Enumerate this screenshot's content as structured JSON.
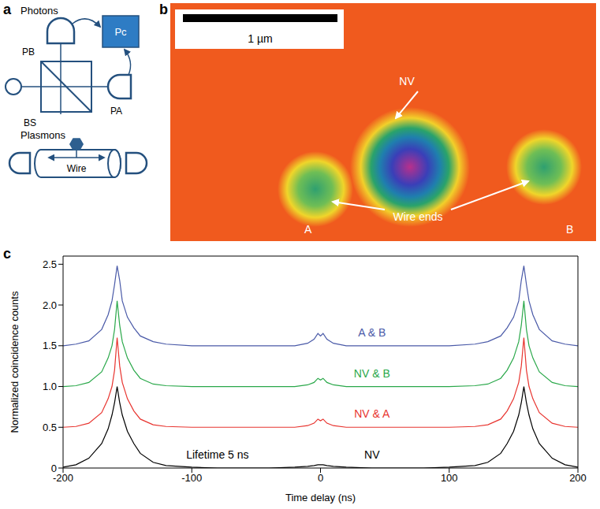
{
  "panels": {
    "a": {
      "letter": "a",
      "photons_label": "Photons",
      "detector_top": "PB",
      "detector_right": "PA",
      "correlator": "Pc",
      "splitter": "BS",
      "plasmons_label": "Plasmons",
      "wire_label": "Wire"
    },
    "b": {
      "letter": "b",
      "scale_bar": "1 µm",
      "nv_label": "NV",
      "wire_ends_label": "Wire ends",
      "end_a": "A",
      "end_b": "B"
    }
  },
  "chart_data": {
    "letter": "c",
    "type": "line",
    "xlabel": "Time delay (ns)",
    "ylabel": "Normalized coincidence counts",
    "xlim": [
      -200,
      200
    ],
    "xticks": [
      -200,
      -100,
      0,
      100,
      200
    ],
    "ylim": [
      0,
      2.6
    ],
    "yticks": [
      0,
      0.5,
      {
        "value": 1,
        "label": "1.0"
      },
      {
        "value": 1.5,
        "label": "1.5"
      },
      {
        "value": 2,
        "label": "2.0"
      },
      {
        "value": 2.5,
        "label": "2.5"
      }
    ],
    "annotations": [
      "Lifetime 5 ns"
    ],
    "x": [
      -200,
      -190,
      -180,
      -170,
      -165,
      -162,
      -160,
      -158,
      -156,
      -154,
      -150,
      -145,
      -140,
      -130,
      -120,
      -100,
      -80,
      -60,
      -40,
      -20,
      -10,
      -5,
      -2,
      0,
      2,
      5,
      10,
      20,
      40,
      60,
      80,
      100,
      120,
      130,
      140,
      145,
      150,
      154,
      156,
      158,
      160,
      162,
      165,
      170,
      180,
      190,
      200
    ],
    "series": [
      {
        "name": "NV",
        "color": "#000000",
        "values": [
          0.01,
          0.04,
          0.12,
          0.3,
          0.48,
          0.65,
          0.8,
          1.0,
          0.8,
          0.65,
          0.45,
          0.3,
          0.18,
          0.07,
          0.03,
          0.01,
          0,
          0,
          0,
          0.01,
          0.02,
          0.03,
          0.04,
          0.04,
          0.04,
          0.03,
          0.02,
          0.01,
          0,
          0,
          0,
          0.01,
          0.03,
          0.07,
          0.18,
          0.3,
          0.45,
          0.65,
          0.8,
          1.0,
          0.8,
          0.65,
          0.48,
          0.3,
          0.12,
          0.04,
          0.01
        ]
      },
      {
        "name": "NV & A",
        "color": "#e8342f",
        "values": [
          0.5,
          0.51,
          0.55,
          0.68,
          0.85,
          1.0,
          1.2,
          1.6,
          1.25,
          1.05,
          0.85,
          0.7,
          0.6,
          0.53,
          0.51,
          0.5,
          0.5,
          0.5,
          0.5,
          0.5,
          0.52,
          0.55,
          0.6,
          0.58,
          0.6,
          0.55,
          0.52,
          0.5,
          0.5,
          0.5,
          0.5,
          0.5,
          0.51,
          0.53,
          0.6,
          0.7,
          0.85,
          1.05,
          1.25,
          1.6,
          1.2,
          1.0,
          0.85,
          0.68,
          0.55,
          0.51,
          0.5
        ]
      },
      {
        "name": "NV & B",
        "color": "#2aa84a",
        "values": [
          1.0,
          1.01,
          1.05,
          1.18,
          1.35,
          1.5,
          1.7,
          2.05,
          1.75,
          1.55,
          1.35,
          1.2,
          1.1,
          1.03,
          1.01,
          1.0,
          1.0,
          1.0,
          1.0,
          1.0,
          1.02,
          1.05,
          1.1,
          1.08,
          1.1,
          1.05,
          1.02,
          1.0,
          1.0,
          1.0,
          1.0,
          1.0,
          1.01,
          1.03,
          1.1,
          1.2,
          1.35,
          1.55,
          1.75,
          2.05,
          1.7,
          1.5,
          1.35,
          1.18,
          1.05,
          1.01,
          1.0
        ]
      },
      {
        "name": "A & B",
        "color": "#4a5aa8",
        "values": [
          1.5,
          1.52,
          1.56,
          1.7,
          1.88,
          2.05,
          2.25,
          2.48,
          2.3,
          2.05,
          1.85,
          1.72,
          1.62,
          1.55,
          1.52,
          1.5,
          1.5,
          1.5,
          1.5,
          1.5,
          1.53,
          1.58,
          1.65,
          1.62,
          1.65,
          1.58,
          1.53,
          1.5,
          1.5,
          1.5,
          1.5,
          1.5,
          1.52,
          1.55,
          1.62,
          1.72,
          1.85,
          2.05,
          2.3,
          2.48,
          2.25,
          2.05,
          1.88,
          1.7,
          1.56,
          1.52,
          1.5
        ]
      }
    ]
  }
}
